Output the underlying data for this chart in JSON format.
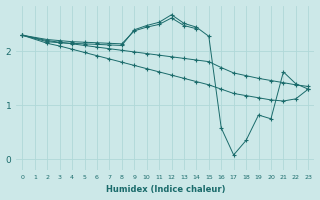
{
  "xlabel": "Humidex (Indice chaleur)",
  "background_color": "#cce8e8",
  "line_color": "#1a6b6b",
  "grid_color": "#b0d8d8",
  "xlim": [
    -0.5,
    23.5
  ],
  "ylim": [
    -0.2,
    2.85
  ],
  "xticks": [
    0,
    1,
    2,
    3,
    4,
    5,
    6,
    7,
    8,
    9,
    10,
    11,
    12,
    13,
    14,
    15,
    16,
    17,
    18,
    19,
    20,
    21,
    22,
    23
  ],
  "yticks": [
    0,
    1,
    2
  ],
  "line1_x": [
    0,
    2,
    3,
    4,
    5,
    6,
    7,
    8,
    9,
    10,
    11,
    12,
    13,
    14
  ],
  "line1_y": [
    2.3,
    2.22,
    2.2,
    2.18,
    2.17,
    2.16,
    2.15,
    2.14,
    2.38,
    2.45,
    2.5,
    2.62,
    2.48,
    2.42
  ],
  "line2_x": [
    0,
    2,
    3,
    4,
    5,
    6,
    7,
    8,
    9,
    10,
    11,
    12,
    13,
    14,
    15,
    16,
    17,
    18,
    19,
    20,
    21,
    22,
    23
  ],
  "line2_y": [
    2.3,
    2.2,
    2.17,
    2.14,
    2.11,
    2.08,
    2.05,
    2.02,
    1.99,
    1.96,
    1.93,
    1.9,
    1.87,
    1.84,
    1.81,
    1.7,
    1.6,
    1.55,
    1.5,
    1.46,
    1.42,
    1.38,
    1.35
  ],
  "line3_x": [
    0,
    2,
    3,
    4,
    5,
    6,
    7,
    8,
    9,
    10,
    11,
    12,
    13,
    14,
    15,
    16,
    17,
    18,
    19,
    20,
    21,
    22,
    23
  ],
  "line3_y": [
    2.3,
    2.15,
    2.1,
    2.04,
    1.98,
    1.92,
    1.86,
    1.8,
    1.74,
    1.68,
    1.62,
    1.56,
    1.5,
    1.44,
    1.38,
    1.3,
    1.22,
    1.18,
    1.14,
    1.1,
    1.08,
    1.12,
    1.3
  ],
  "line4_x": [
    0,
    2,
    3,
    4,
    5,
    6,
    7,
    8,
    9,
    10,
    11,
    12,
    13,
    14,
    15,
    16,
    17,
    18,
    19,
    20,
    21,
    22,
    23
  ],
  "line4_y": [
    2.3,
    2.18,
    2.16,
    2.15,
    2.14,
    2.13,
    2.12,
    2.11,
    2.4,
    2.48,
    2.54,
    2.68,
    2.52,
    2.45,
    2.28,
    0.58,
    0.08,
    0.35,
    0.82,
    0.75,
    1.62,
    1.4,
    1.3
  ]
}
